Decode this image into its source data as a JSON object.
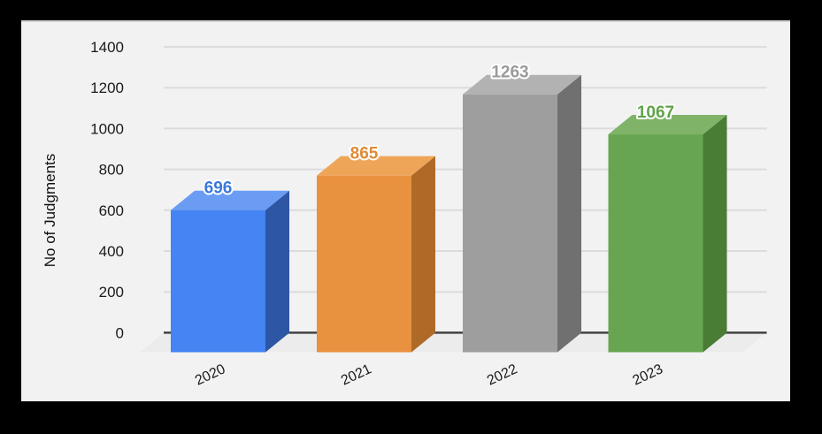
{
  "chart_data": {
    "type": "bar",
    "style": "3d",
    "title": "",
    "ylabel": "No of Judgments",
    "xlabel": "",
    "categories": [
      "2020",
      "2021",
      "2022",
      "2023"
    ],
    "values": [
      696,
      865,
      1263,
      1067
    ],
    "value_labels": [
      "696",
      "865",
      "1263",
      "1067"
    ],
    "yticks": [
      0,
      200,
      400,
      600,
      800,
      1000,
      1200,
      1400
    ],
    "ylim": [
      0,
      1400
    ],
    "grid": true,
    "legend": "none",
    "bar_colors": [
      {
        "name": "blue",
        "front": "#4484f3",
        "top": "#6b9cf3",
        "side": "#2d56a5",
        "label": "#3b78dc"
      },
      {
        "name": "orange",
        "front": "#e8913e",
        "top": "#efa558",
        "side": "#b06a28",
        "label": "#e08b35"
      },
      {
        "name": "gray",
        "front": "#9e9e9e",
        "top": "#b2b2b2",
        "side": "#707070",
        "label": "#9a9a9a"
      },
      {
        "name": "green",
        "front": "#67a551",
        "top": "#7fb468",
        "side": "#497c34",
        "label": "#5fa349"
      }
    ],
    "colors": {
      "frame_bg": "#000000",
      "panel_bg": "#f2f2f2",
      "panel_top_border": "#d2d2d2",
      "gridline": "#dcdcdc",
      "zero_axis": "#424242",
      "floor": "#ececec",
      "tick_text": "#1a1a1a",
      "axis_title_text": "#111111"
    }
  }
}
